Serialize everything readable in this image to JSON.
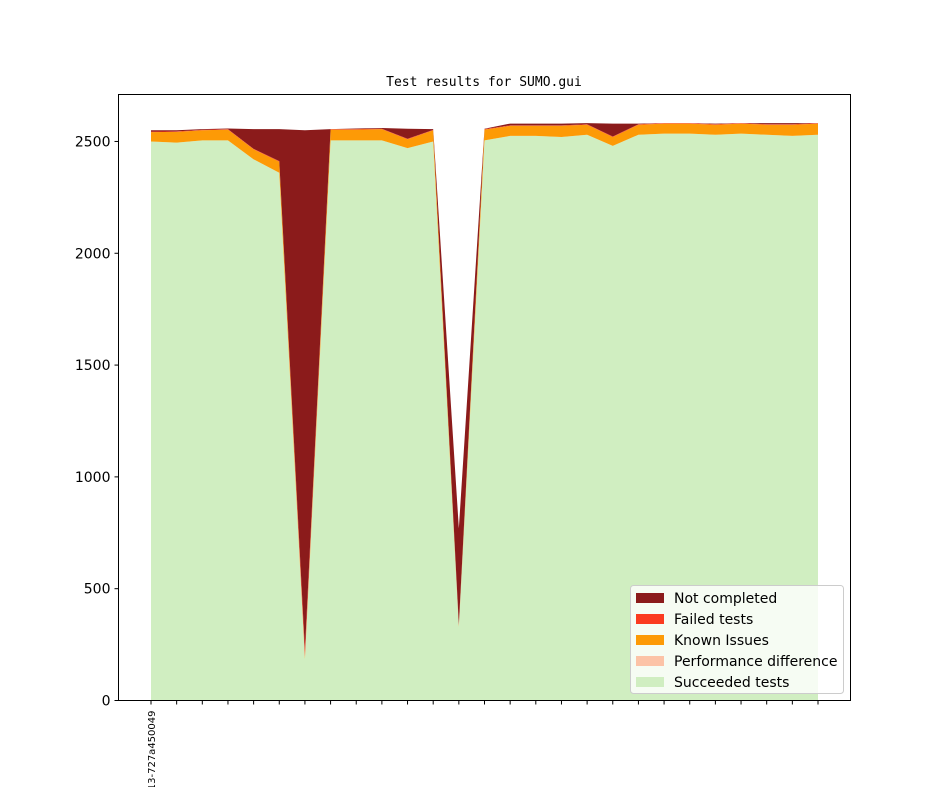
{
  "chart_data": {
    "type": "area",
    "title": "Test results for SUMO.gui",
    "xlabel": "",
    "ylabel": "",
    "ylim": [
      0,
      2710
    ],
    "yticks": [
      0,
      500,
      1000,
      1500,
      2000,
      2500
    ],
    "x_tick_labels": [
      "13-727a450049"
    ],
    "legend_position": "lower-right",
    "stacked": true,
    "series": [
      {
        "name": "Succeeded tests",
        "color": "#d0eec1",
        "values": [
          2500,
          2495,
          2505,
          2505,
          2420,
          2360,
          185,
          2505,
          2505,
          2505,
          2470,
          2500,
          330,
          2505,
          2525,
          2525,
          2520,
          2530,
          2480,
          2530,
          2535,
          2535,
          2530,
          2535,
          2530,
          2525,
          2530
        ]
      },
      {
        "name": "Performance difference",
        "color": "#fcc3a7",
        "values": [
          0,
          0,
          0,
          0,
          0,
          0,
          0,
          0,
          0,
          0,
          0,
          0,
          0,
          0,
          0,
          0,
          0,
          0,
          0,
          0,
          0,
          0,
          0,
          0,
          0,
          0,
          0
        ]
      },
      {
        "name": "Known Issues",
        "color": "#fd9a06",
        "values": [
          42,
          48,
          45,
          48,
          45,
          50,
          10,
          48,
          48,
          50,
          40,
          50,
          5,
          48,
          45,
          45,
          50,
          45,
          40,
          45,
          45,
          45,
          45,
          45,
          45,
          50,
          50
        ]
      },
      {
        "name": "Failed tests",
        "color": "#fb3b20",
        "values": [
          2,
          2,
          2,
          2,
          2,
          2,
          30,
          2,
          2,
          2,
          2,
          2,
          5,
          2,
          2,
          2,
          2,
          2,
          2,
          2,
          2,
          2,
          2,
          2,
          2,
          2,
          2
        ]
      },
      {
        "name": "Not completed",
        "color": "#8b1b1b",
        "values": [
          6,
          5,
          3,
          3,
          88,
          143,
          2325,
          0,
          3,
          3,
          45,
          3,
          430,
          2,
          8,
          8,
          8,
          5,
          58,
          3,
          0,
          0,
          3,
          0,
          5,
          5,
          0
        ]
      }
    ],
    "legend_order": [
      "Not completed",
      "Failed tests",
      "Known Issues",
      "Performance difference",
      "Succeeded tests"
    ]
  }
}
